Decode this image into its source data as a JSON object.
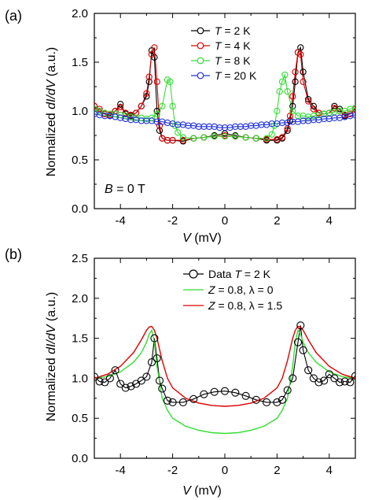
{
  "chart_data": [
    {
      "panel_label": "(a)",
      "type": "line",
      "xlabel_var": "V",
      "xlabel_unit": " (mV)",
      "ylabel_pre": "Normalized ",
      "ylabel_var": "dI/dV",
      "ylabel_post": " (a.u.)",
      "xlim": [
        -5,
        5
      ],
      "ylim": [
        0,
        2
      ],
      "xticks": [
        -4,
        -2,
        0,
        2,
        4
      ],
      "yticks": [
        0.0,
        0.5,
        1.0,
        1.5,
        2.0
      ],
      "ytick_labels": [
        "0.0",
        "0.5",
        "1.0",
        "1.5",
        "2.0"
      ],
      "annotation": {
        "var": "B",
        "rest": " = 0 T"
      },
      "legend": {
        "position": "top-right"
      },
      "series": [
        {
          "name": "T = 2 K",
          "name_var": "T",
          "name_rest": " = 2 K",
          "color": "#000000",
          "marker": "circle",
          "x": [
            -5.0,
            -4.8,
            -4.6,
            -4.4,
            -4.2,
            -4.0,
            -3.8,
            -3.6,
            -3.4,
            -3.2,
            -3.0,
            -2.9,
            -2.8,
            -2.7,
            -2.6,
            -2.5,
            -2.4,
            -2.2,
            -2.0,
            -1.6,
            -1.2,
            -0.8,
            -0.4,
            0.0,
            0.4,
            0.8,
            1.2,
            1.6,
            2.0,
            2.2,
            2.4,
            2.5,
            2.6,
            2.7,
            2.8,
            2.9,
            3.0,
            3.2,
            3.4,
            3.6,
            3.8,
            4.0,
            4.2,
            4.4,
            4.6,
            4.8,
            5.0
          ],
          "y": [
            1.05,
            1.0,
            0.97,
            0.95,
            1.0,
            1.07,
            0.97,
            0.95,
            0.98,
            1.05,
            1.15,
            1.3,
            1.62,
            1.55,
            1.0,
            0.8,
            0.72,
            0.7,
            0.7,
            0.69,
            0.72,
            0.73,
            0.75,
            0.77,
            0.75,
            0.73,
            0.72,
            0.7,
            0.7,
            0.72,
            0.8,
            0.9,
            1.05,
            1.3,
            1.6,
            1.65,
            1.4,
            1.12,
            1.05,
            0.98,
            0.97,
            0.98,
            1.05,
            1.02,
            0.95,
            0.97,
            1.03
          ]
        },
        {
          "name": "T = 4 K",
          "name_var": "T",
          "name_rest": " = 4 K",
          "color": "#dd0000",
          "marker": "circle",
          "x": [
            -5.0,
            -4.8,
            -4.6,
            -4.4,
            -4.2,
            -4.0,
            -3.8,
            -3.6,
            -3.4,
            -3.2,
            -3.0,
            -2.9,
            -2.8,
            -2.7,
            -2.6,
            -2.5,
            -2.4,
            -2.2,
            -2.0,
            -1.6,
            -1.2,
            -0.8,
            -0.4,
            0.0,
            0.4,
            0.8,
            1.2,
            1.6,
            2.0,
            2.2,
            2.4,
            2.5,
            2.6,
            2.7,
            2.8,
            2.9,
            3.0,
            3.2,
            3.4,
            3.6,
            3.8,
            4.0,
            4.2,
            4.4,
            4.6,
            4.8,
            5.0
          ],
          "y": [
            1.05,
            1.02,
            0.97,
            0.96,
            1.0,
            1.04,
            0.98,
            0.96,
            0.98,
            1.05,
            1.18,
            1.35,
            1.58,
            1.65,
            1.3,
            0.85,
            0.72,
            0.7,
            0.7,
            0.7,
            0.72,
            0.73,
            0.74,
            0.75,
            0.74,
            0.73,
            0.72,
            0.71,
            0.71,
            0.73,
            0.82,
            0.95,
            1.15,
            1.4,
            1.6,
            1.58,
            1.3,
            1.1,
            1.02,
            0.98,
            0.97,
            0.98,
            1.03,
            1.0,
            0.96,
            0.97,
            1.02
          ]
        },
        {
          "name": "T = 8 K",
          "name_var": "T",
          "name_rest": " = 8 K",
          "color": "#33dd33",
          "marker": "circle",
          "x": [
            -5.0,
            -4.8,
            -4.6,
            -4.4,
            -4.2,
            -4.0,
            -3.8,
            -3.6,
            -3.4,
            -3.2,
            -3.0,
            -2.8,
            -2.6,
            -2.4,
            -2.2,
            -2.1,
            -2.0,
            -1.9,
            -1.8,
            -1.6,
            -1.2,
            -0.8,
            -0.4,
            0.0,
            0.4,
            0.8,
            1.2,
            1.6,
            1.8,
            1.9,
            2.0,
            2.1,
            2.2,
            2.3,
            2.4,
            2.6,
            2.8,
            3.0,
            3.2,
            3.4,
            3.6,
            3.8,
            4.0,
            4.2,
            4.4,
            4.6,
            4.8,
            5.0
          ],
          "y": [
            1.02,
            1.0,
            0.98,
            0.97,
            0.97,
            0.96,
            0.95,
            0.94,
            0.93,
            0.93,
            0.92,
            0.93,
            0.97,
            1.05,
            1.32,
            1.3,
            1.05,
            0.85,
            0.78,
            0.73,
            0.72,
            0.73,
            0.74,
            0.74,
            0.74,
            0.73,
            0.72,
            0.72,
            0.76,
            0.85,
            1.0,
            1.2,
            1.3,
            1.37,
            1.2,
            1.0,
            0.95,
            0.95,
            0.94,
            0.95,
            0.96,
            0.97,
            0.98,
            0.99,
            1.0,
            1.0,
            1.02,
            1.03
          ]
        },
        {
          "name": "T = 20 K",
          "name_var": "T",
          "name_rest": " = 20 K",
          "color": "#2233dd",
          "marker": "circle",
          "x": [
            -5.0,
            -4.8,
            -4.6,
            -4.4,
            -4.2,
            -4.0,
            -3.8,
            -3.6,
            -3.4,
            -3.2,
            -3.0,
            -2.8,
            -2.6,
            -2.4,
            -2.2,
            -2.0,
            -1.8,
            -1.6,
            -1.4,
            -1.2,
            -1.0,
            -0.8,
            -0.6,
            -0.4,
            -0.2,
            0.0,
            0.2,
            0.4,
            0.6,
            0.8,
            1.0,
            1.2,
            1.4,
            1.6,
            1.8,
            2.0,
            2.2,
            2.4,
            2.6,
            2.8,
            3.0,
            3.2,
            3.4,
            3.6,
            3.8,
            4.0,
            4.2,
            4.4,
            4.6,
            4.8,
            5.0
          ],
          "y": [
            0.97,
            0.96,
            0.95,
            0.95,
            0.94,
            0.93,
            0.92,
            0.91,
            0.91,
            0.9,
            0.9,
            0.9,
            0.89,
            0.89,
            0.88,
            0.87,
            0.86,
            0.86,
            0.85,
            0.85,
            0.84,
            0.84,
            0.84,
            0.84,
            0.83,
            0.83,
            0.83,
            0.84,
            0.84,
            0.84,
            0.85,
            0.85,
            0.86,
            0.86,
            0.87,
            0.87,
            0.88,
            0.88,
            0.89,
            0.89,
            0.9,
            0.9,
            0.91,
            0.91,
            0.92,
            0.92,
            0.93,
            0.93,
            0.94,
            0.95,
            0.96
          ]
        }
      ]
    },
    {
      "panel_label": "(b)",
      "type": "line",
      "xlabel_var": "V",
      "xlabel_unit": " (mV)",
      "ylabel_pre": "Normalized ",
      "ylabel_var": "dI/dV",
      "ylabel_post": " (a.u.)",
      "xlim": [
        -5,
        5
      ],
      "ylim": [
        0,
        2.5
      ],
      "xticks": [
        -4,
        -2,
        0,
        2,
        4
      ],
      "yticks": [
        0.0,
        0.5,
        1.0,
        1.5,
        2.0,
        2.5
      ],
      "ytick_labels": [
        "0.0",
        "0.5",
        "1.0",
        "1.5",
        "2.0",
        "2.5"
      ],
      "legend": {
        "position": "top-center"
      },
      "series": [
        {
          "name": "Data T = 2 K",
          "name_pre": "Data ",
          "name_var": "T",
          "name_rest": " = 2 K",
          "color": "#000000",
          "marker": "circle",
          "x": [
            -5.0,
            -4.8,
            -4.6,
            -4.4,
            -4.2,
            -4.0,
            -3.8,
            -3.6,
            -3.4,
            -3.2,
            -3.0,
            -2.8,
            -2.7,
            -2.6,
            -2.5,
            -2.4,
            -2.2,
            -2.0,
            -1.6,
            -1.2,
            -0.8,
            -0.4,
            0.0,
            0.4,
            0.8,
            1.2,
            1.6,
            2.0,
            2.2,
            2.4,
            2.6,
            2.8,
            2.9,
            3.0,
            3.2,
            3.4,
            3.6,
            3.8,
            4.0,
            4.2,
            4.4,
            4.6,
            4.8,
            5.0
          ],
          "y": [
            1.02,
            0.96,
            0.95,
            1.0,
            1.1,
            0.93,
            0.88,
            0.9,
            0.93,
            0.97,
            1.02,
            1.2,
            1.5,
            1.25,
            0.97,
            0.87,
            0.72,
            0.7,
            0.7,
            0.74,
            0.8,
            0.83,
            0.84,
            0.82,
            0.78,
            0.73,
            0.7,
            0.7,
            0.73,
            0.85,
            1.0,
            1.45,
            1.66,
            1.35,
            1.1,
            1.0,
            0.95,
            0.97,
            1.05,
            1.0,
            0.95,
            0.96,
            0.95,
            1.03
          ]
        },
        {
          "name": "Z = 0.8, λ = 0",
          "name_var": "Z",
          "name_rest": " = 0.8, λ = 0",
          "color": "#33dd33",
          "marker": "none",
          "x": [
            -5.0,
            -4.5,
            -4.0,
            -3.5,
            -3.2,
            -3.0,
            -2.9,
            -2.8,
            -2.7,
            -2.6,
            -2.4,
            -2.2,
            -2.0,
            -1.5,
            -1.0,
            -0.5,
            0.0,
            0.5,
            1.0,
            1.5,
            2.0,
            2.2,
            2.4,
            2.6,
            2.7,
            2.8,
            2.9,
            3.0,
            3.2,
            3.5,
            4.0,
            4.5,
            5.0
          ],
          "y": [
            1.0,
            1.02,
            1.08,
            1.2,
            1.32,
            1.45,
            1.55,
            1.6,
            1.45,
            1.15,
            0.75,
            0.6,
            0.5,
            0.4,
            0.35,
            0.32,
            0.31,
            0.32,
            0.35,
            0.4,
            0.5,
            0.6,
            0.75,
            1.15,
            1.45,
            1.6,
            1.55,
            1.45,
            1.32,
            1.2,
            1.08,
            1.02,
            1.0
          ]
        },
        {
          "name": "Z = 0.8, λ = 1.5",
          "name_var": "Z",
          "name_rest": " = 0.8, λ = 1.5",
          "color": "#dd0000",
          "marker": "none",
          "x": [
            -5.0,
            -4.5,
            -4.0,
            -3.5,
            -3.2,
            -3.0,
            -2.9,
            -2.8,
            -2.7,
            -2.6,
            -2.4,
            -2.2,
            -2.0,
            -1.5,
            -1.0,
            -0.5,
            0.0,
            0.5,
            1.0,
            1.5,
            2.0,
            2.2,
            2.4,
            2.6,
            2.7,
            2.8,
            2.9,
            3.0,
            3.2,
            3.5,
            4.0,
            4.5,
            5.0
          ],
          "y": [
            1.0,
            1.05,
            1.15,
            1.32,
            1.48,
            1.6,
            1.64,
            1.65,
            1.6,
            1.5,
            1.22,
            1.0,
            0.88,
            0.75,
            0.69,
            0.66,
            0.65,
            0.66,
            0.69,
            0.75,
            0.88,
            1.0,
            1.22,
            1.5,
            1.6,
            1.65,
            1.64,
            1.6,
            1.48,
            1.32,
            1.15,
            1.05,
            1.0
          ]
        }
      ]
    }
  ]
}
